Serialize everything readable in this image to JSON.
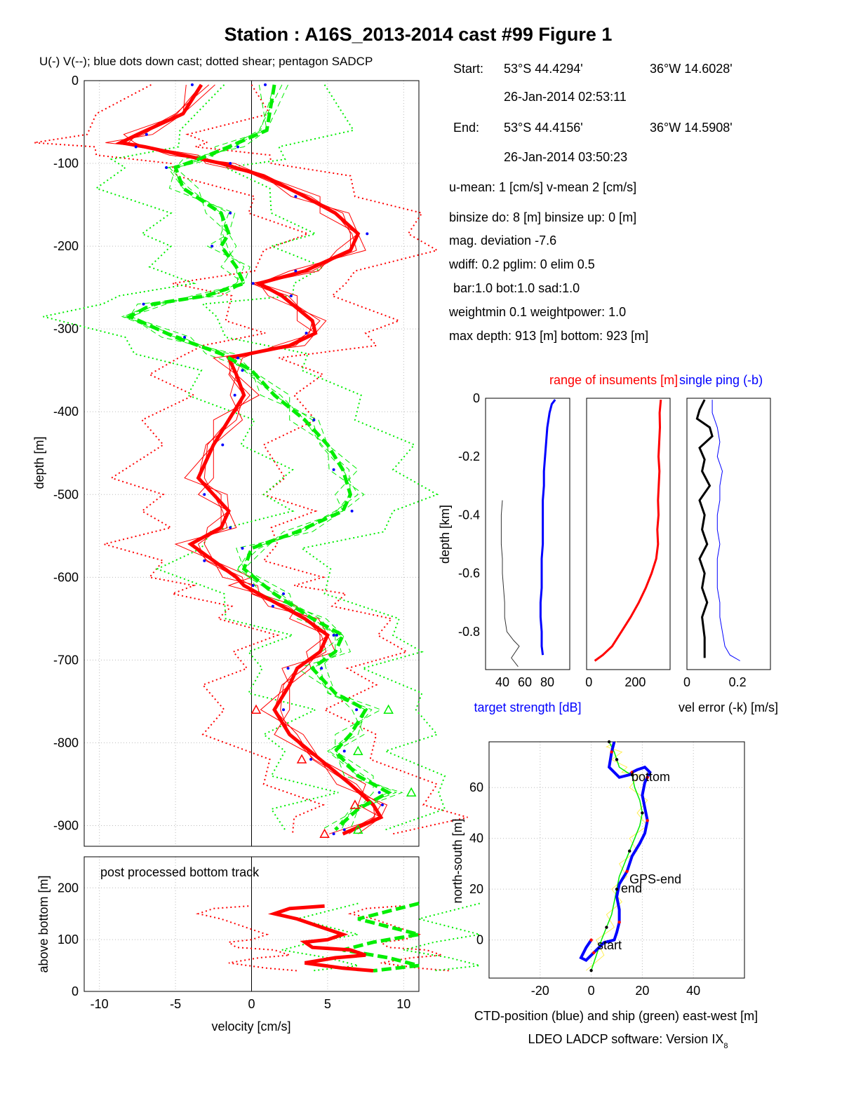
{
  "figure": {
    "title": "Station : A16S_2013-2014 cast #99  Figure 1",
    "subtitle": "U(-) V(--); blue dots down cast; dotted shear; pentagon SADCP",
    "footer": "LDEO LADCP software: Version IX",
    "footer_sub": "8"
  },
  "info": {
    "start_label": "Start:",
    "start_lat": "53°S 44.4294'",
    "start_lon": "36°W 14.6028'",
    "start_time": "26-Jan-2014 02:53:11",
    "end_label": "End:",
    "end_lat": "53°S 44.4156'",
    "end_lon": "36°W 14.5908'",
    "end_time": "26-Jan-2014 03:50:23",
    "means": "u-mean:   1 [cm/s]    v-mean   2 [cm/s]",
    "binsize": "binsize do: 8 [m]  binsize up:  0 [m]",
    "magdev": "mag. deviation -7.6",
    "wdiff": "wdiff: 0.2  pglim: 0  elim 0.5",
    "weights": "bar:1.0 bot:1.0 sad:1.0",
    "weightmin": "weightmin 0.1  weightpower: 1.0",
    "depths": "max depth: 913 [m]   bottom: 923 [m]"
  },
  "colors": {
    "u": "#ff0000",
    "v": "#00ee00",
    "dots": "#0000ff",
    "axis": "#000000",
    "grid": "#bbbbbb",
    "ship": "#ffee55"
  },
  "chart_data": [
    {
      "id": "profile",
      "type": "line",
      "xlabel": "",
      "ylabel": "depth [m]",
      "xlim": [
        -11,
        11
      ],
      "ylim": [
        -925,
        0
      ],
      "xticks": [
        -10,
        -5,
        0,
        5,
        10
      ],
      "yticks": [
        0,
        -100,
        -200,
        -300,
        -400,
        -500,
        -600,
        -700,
        -800,
        -900
      ],
      "grid": true,
      "series": [
        {
          "name": "U",
          "x": [
            -3.3,
            -4.5,
            -7.5,
            -8.6,
            -7.0,
            -4.5,
            -2.0,
            0.8,
            3.5,
            5.5,
            7.0,
            6.5,
            3.5,
            0.5,
            2.0,
            4.0,
            4.2,
            2.5,
            -1.5,
            -1.0,
            -0.5,
            -1.5,
            -2.5,
            -3.5,
            -2.5,
            -1.5,
            -2.0,
            -4.0,
            -2.5,
            -1.0,
            -0.5,
            0.5,
            2.0,
            3.5,
            5.0,
            4.5,
            3.0,
            2.5,
            1.5,
            2.5,
            4.5,
            6.5,
            8.0,
            8.5,
            6.0
          ],
          "y": [
            -5,
            -40,
            -65,
            -75,
            -80,
            -90,
            -100,
            -115,
            -140,
            -160,
            -185,
            -205,
            -230,
            -245,
            -260,
            -290,
            -305,
            -320,
            -335,
            -355,
            -380,
            -410,
            -440,
            -480,
            -500,
            -520,
            -540,
            -560,
            -580,
            -600,
            -610,
            -620,
            -635,
            -650,
            -670,
            -690,
            -710,
            -730,
            -760,
            -790,
            -820,
            -850,
            -875,
            -890,
            -910
          ]
        },
        {
          "name": "V",
          "x": [
            1.5,
            1.0,
            -1.5,
            -3.5,
            -5.0,
            -4.5,
            -2.0,
            -1.5,
            -2.0,
            -1.0,
            -0.5,
            -3.0,
            -6.5,
            -8.0,
            -5.0,
            -2.0,
            0.0,
            1.5,
            3.5,
            5.0,
            6.0,
            6.5,
            6.0,
            3.0,
            0.0,
            -0.5,
            1.5,
            4.0,
            6.0,
            5.5,
            4.0,
            5.5,
            7.5,
            6.5,
            5.5,
            7.0,
            9.0,
            7.0,
            5.5
          ],
          "y": [
            -5,
            -60,
            -80,
            -95,
            -105,
            -130,
            -160,
            -185,
            -200,
            -225,
            -245,
            -260,
            -270,
            -285,
            -310,
            -330,
            -350,
            -380,
            -410,
            -440,
            -470,
            -500,
            -520,
            -545,
            -565,
            -590,
            -620,
            -650,
            -670,
            -690,
            -710,
            -740,
            -760,
            -790,
            -810,
            -840,
            -860,
            -880,
            -905
          ]
        }
      ]
    },
    {
      "id": "bottom_track",
      "type": "line",
      "title": "post processed bottom track",
      "xlabel": "velocity [cm/s]",
      "ylabel": "above bottom [m]",
      "xlim": [
        -11,
        11
      ],
      "ylim": [
        0,
        260
      ],
      "xticks": [
        -10,
        -5,
        0,
        5,
        10
      ],
      "yticks": [
        0,
        100,
        200
      ],
      "grid": true,
      "series": [
        {
          "name": "U",
          "x": [
            4.8,
            2.5,
            1.5,
            3.0,
            4.5,
            6.0,
            5.0,
            3.5,
            4.0,
            6.5,
            7.5,
            5.5,
            3.5,
            6.0,
            8.0
          ],
          "y": [
            165,
            160,
            150,
            140,
            125,
            110,
            100,
            95,
            85,
            80,
            70,
            65,
            55,
            45,
            40
          ]
        },
        {
          "name": "V",
          "x": [
            11,
            9,
            7,
            9,
            11,
            8,
            6,
            9,
            11,
            8
          ],
          "y": [
            170,
            155,
            140,
            125,
            110,
            95,
            80,
            65,
            50,
            40
          ]
        }
      ]
    },
    {
      "id": "target_strength",
      "type": "line",
      "title": "",
      "xlabel": "target strength [dB]",
      "ylabel": "depth [km]",
      "xlim": [
        25,
        100
      ],
      "ylim": [
        -0.93,
        0
      ],
      "xticks": [
        40,
        60,
        80
      ],
      "yticks": [
        0,
        -0.2,
        -0.4,
        -0.6,
        -0.8
      ],
      "grid": false,
      "series": [
        {
          "name": "",
          "x": [
            87,
            84,
            82,
            80,
            79,
            78,
            77,
            77,
            76,
            76,
            76,
            76,
            75,
            75,
            75,
            74,
            74,
            75,
            75,
            76
          ],
          "y": [
            -0.005,
            -0.02,
            -0.05,
            -0.1,
            -0.15,
            -0.2,
            -0.25,
            -0.3,
            -0.35,
            -0.4,
            -0.45,
            -0.5,
            -0.55,
            -0.6,
            -0.65,
            -0.7,
            -0.75,
            -0.8,
            -0.85,
            -0.88
          ]
        },
        {
          "name": "",
          "x": [
            40,
            39,
            39,
            39,
            40,
            40,
            41,
            42,
            42,
            44,
            50,
            55,
            48,
            54
          ],
          "y": [
            -0.35,
            -0.4,
            -0.45,
            -0.5,
            -0.55,
            -0.6,
            -0.65,
            -0.7,
            -0.75,
            -0.8,
            -0.83,
            -0.85,
            -0.89,
            -0.92
          ]
        }
      ]
    },
    {
      "id": "instrument_range",
      "type": "line",
      "title": "range of insuments [m]",
      "xlabel": "",
      "xlim": [
        -10,
        350
      ],
      "ylim": [
        -0.93,
        0
      ],
      "xticks": [
        0,
        200
      ],
      "grid": false,
      "series": [
        {
          "name": "",
          "x": [
            310,
            305,
            306,
            303,
            300,
            304,
            301,
            298,
            300,
            295,
            298,
            290,
            270,
            245,
            215,
            180,
            140,
            100,
            60,
            25
          ],
          "y": [
            -0.005,
            -0.05,
            -0.1,
            -0.15,
            -0.2,
            -0.25,
            -0.3,
            -0.35,
            -0.4,
            -0.45,
            -0.5,
            -0.55,
            -0.6,
            -0.65,
            -0.7,
            -0.75,
            -0.8,
            -0.85,
            -0.88,
            -0.9
          ]
        }
      ]
    },
    {
      "id": "velocity_error",
      "type": "line",
      "title": "single ping (-b)",
      "xlabel": "vel error (-k) [m/s]",
      "xlim": [
        0,
        0.33
      ],
      "ylim": [
        -0.93,
        0
      ],
      "xticks": [
        0,
        0.2
      ],
      "grid": false,
      "series": [
        {
          "name": "single ping (-b)",
          "x": [
            0.1,
            0.1,
            0.12,
            0.13,
            0.12,
            0.14,
            0.13,
            0.13,
            0.12,
            0.12,
            0.13,
            0.12,
            0.12,
            0.12,
            0.13,
            0.13,
            0.14,
            0.15,
            0.17,
            0.21
          ],
          "y": [
            -0.005,
            -0.05,
            -0.1,
            -0.15,
            -0.2,
            -0.25,
            -0.3,
            -0.35,
            -0.4,
            -0.45,
            -0.5,
            -0.55,
            -0.6,
            -0.65,
            -0.7,
            -0.75,
            -0.8,
            -0.85,
            -0.88,
            -0.9
          ]
        },
        {
          "name": "vel error (-k)",
          "x": [
            0.07,
            0.05,
            0.04,
            0.09,
            0.1,
            0.05,
            0.07,
            0.06,
            0.09,
            0.05,
            0.07,
            0.06,
            0.08,
            0.05,
            0.07,
            0.06,
            0.08,
            0.06,
            0.07,
            0.07
          ],
          "y": [
            -0.005,
            -0.04,
            -0.07,
            -0.1,
            -0.13,
            -0.17,
            -0.21,
            -0.25,
            -0.3,
            -0.35,
            -0.4,
            -0.45,
            -0.5,
            -0.55,
            -0.6,
            -0.65,
            -0.7,
            -0.75,
            -0.82,
            -0.89
          ]
        }
      ]
    },
    {
      "id": "position",
      "type": "line",
      "title": "",
      "xlabel": "CTD-position (blue) and ship (green) east-west [m]",
      "ylabel": "north-south [m]",
      "xlim": [
        -40,
        60
      ],
      "ylim": [
        -15,
        78
      ],
      "xticks": [
        -20,
        0,
        20,
        40
      ],
      "yticks": [
        0,
        20,
        40,
        60
      ],
      "grid": true,
      "annotations": [
        "bottom",
        "GPS-end",
        "end",
        "start"
      ],
      "series": [
        {
          "name": "CTD",
          "x": [
            0,
            -2,
            -4,
            -2,
            1,
            5,
            9,
            10,
            11,
            11,
            10,
            11,
            14,
            16,
            19,
            21,
            22,
            21,
            20,
            21,
            22,
            23,
            21,
            18,
            16,
            15,
            11,
            7,
            8,
            9
          ],
          "y": [
            0,
            -3,
            -7,
            -8,
            -5,
            -1,
            0,
            3,
            7,
            12,
            17,
            22,
            27,
            33,
            38,
            42,
            47,
            52,
            57,
            62,
            64,
            66,
            68,
            67,
            66,
            65,
            64,
            68,
            74,
            78
          ]
        },
        {
          "name": "ship",
          "x": [
            0,
            2,
            4,
            6,
            8,
            9,
            10,
            11,
            13,
            15,
            17,
            19,
            20,
            19,
            17,
            16,
            14,
            11,
            10,
            9,
            8,
            7
          ],
          "y": [
            -12,
            -6,
            0,
            5,
            10,
            15,
            20,
            25,
            30,
            35,
            40,
            45,
            50,
            55,
            60,
            65,
            66,
            68,
            71,
            74,
            76,
            78
          ]
        }
      ]
    }
  ]
}
